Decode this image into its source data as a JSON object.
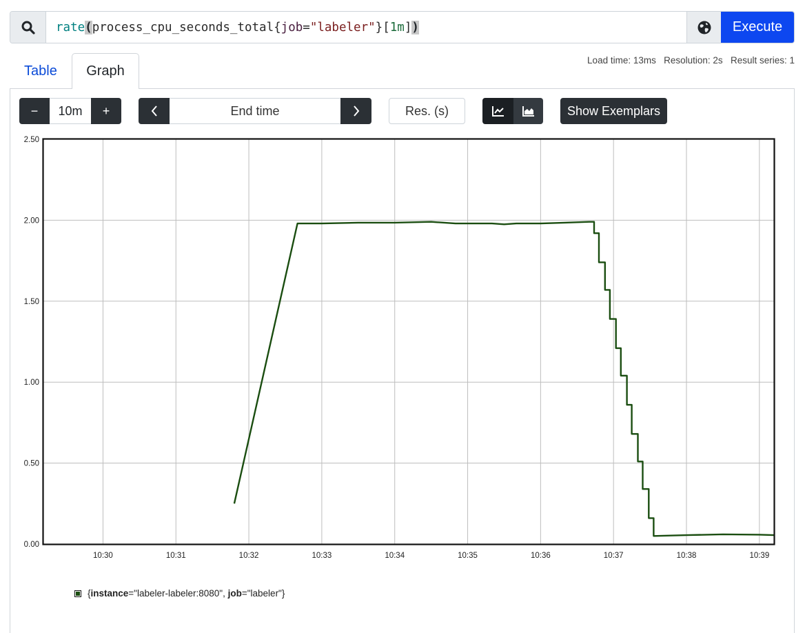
{
  "query": {
    "fn": "rate",
    "open": "(",
    "metric": "process_cpu_seconds_total",
    "brace_open": "{",
    "label_name": "job",
    "eq": "=",
    "label_value": "\"labeler\"",
    "brace_close": "}",
    "range_open": "[",
    "range_value": "1m",
    "range_close": "]",
    "close": ")"
  },
  "buttons": {
    "execute": "Execute",
    "search_icon": "search-icon",
    "globe_icon": "globe-icon"
  },
  "tabs": {
    "table": "Table",
    "graph": "Graph"
  },
  "stats": {
    "load_time": "Load time: 13ms",
    "resolution": "Resolution: 2s",
    "result_series": "Result series: 1"
  },
  "controls": {
    "minus": "−",
    "range": "10m",
    "plus": "+",
    "prev": "‹",
    "end_time": "End time",
    "next": "›",
    "res_placeholder": "Res. (s)",
    "line_icon": "line-chart-icon",
    "stacked_icon": "stacked-area-icon",
    "exemplars": "Show Exemplars"
  },
  "legend": {
    "instance_key": "instance",
    "instance_val": "=\"labeler-labeler:8080\", ",
    "job_key": "job",
    "job_val": "=\"labeler\"}",
    "brace": "{"
  },
  "colors": {
    "series": "#1a4d10",
    "execute": "#0d47f0",
    "dark_button": "#2b3035"
  },
  "chart_data": {
    "type": "line",
    "x_ticks": [
      "10:30",
      "10:31",
      "10:32",
      "10:33",
      "10:34",
      "10:35",
      "10:36",
      "10:37",
      "10:38",
      "10:39"
    ],
    "y_ticks": [
      "0.00",
      "0.50",
      "1.00",
      "1.50",
      "2.00",
      "2.50"
    ],
    "xlim": [
      "10:29:11",
      "10:39:12"
    ],
    "ylim": [
      0,
      2.5
    ],
    "grid": true,
    "legend_position": "bottom-left",
    "series": [
      {
        "points": [
          [
            "10:31:48",
            0.25
          ],
          [
            "10:32:40",
            1.98
          ],
          [
            "10:33:00",
            1.98
          ],
          [
            "10:33:30",
            1.985
          ],
          [
            "10:34:00",
            1.985
          ],
          [
            "10:34:30",
            1.99
          ],
          [
            "10:34:50",
            1.98
          ],
          [
            "10:35:20",
            1.98
          ],
          [
            "10:35:30",
            1.975
          ],
          [
            "10:35:40",
            1.98
          ],
          [
            "10:36:00",
            1.98
          ],
          [
            "10:36:20",
            1.985
          ],
          [
            "10:36:40",
            1.99
          ],
          [
            "10:36:44",
            1.92
          ],
          [
            "10:36:48",
            1.74
          ],
          [
            "10:36:53",
            1.57
          ],
          [
            "10:36:57",
            1.39
          ],
          [
            "10:37:02",
            1.21
          ],
          [
            "10:37:06",
            1.04
          ],
          [
            "10:37:11",
            0.86
          ],
          [
            "10:37:15",
            0.68
          ],
          [
            "10:37:20",
            0.51
          ],
          [
            "10:37:24",
            0.34
          ],
          [
            "10:37:29",
            0.16
          ],
          [
            "10:37:33",
            0.05
          ],
          [
            "10:38:00",
            0.055
          ],
          [
            "10:38:30",
            0.06
          ],
          [
            "10:39:00",
            0.058
          ],
          [
            "10:39:12",
            0.055
          ]
        ]
      }
    ]
  }
}
